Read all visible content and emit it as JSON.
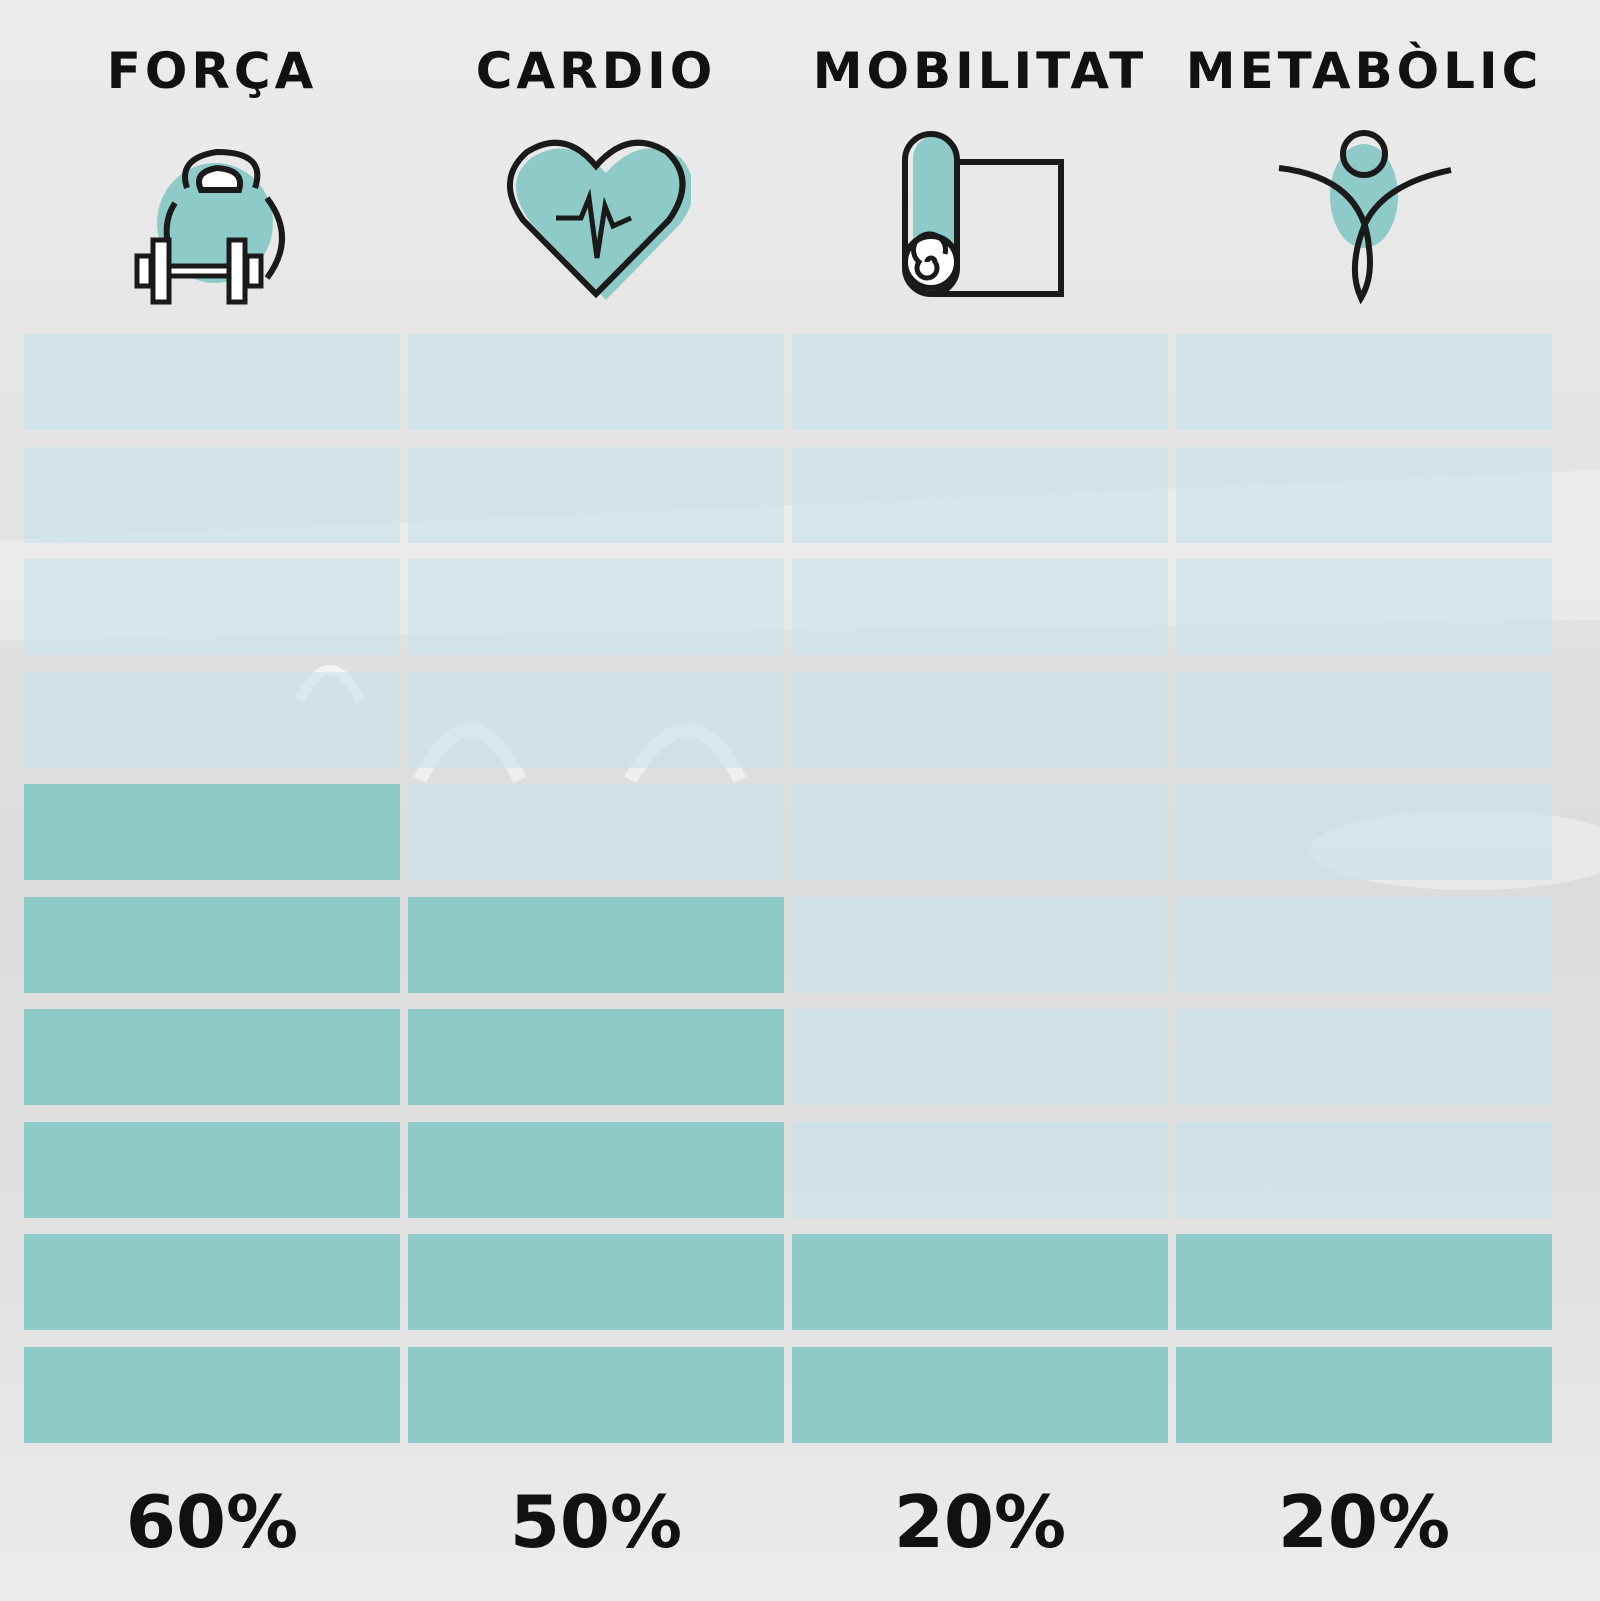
{
  "chart_data": {
    "type": "bar",
    "categories": [
      "FORÇA",
      "CARDIO",
      "MOBILITAT",
      "METABÒLIC"
    ],
    "values": [
      60,
      50,
      20,
      20
    ],
    "value_labels": [
      "60%",
      "50%",
      "20%",
      "20%"
    ],
    "unit": "%",
    "blocks_per_column": 10,
    "ylim": [
      0,
      100
    ],
    "title": "",
    "xlabel": "",
    "ylabel": "",
    "legend": "none",
    "grid": false
  },
  "icons": [
    "kettlebell-dumbbell-icon",
    "heart-pulse-icon",
    "yoga-mat-icon",
    "person-icon"
  ],
  "colors": {
    "filled": "#8ecbc8",
    "empty": "#c6e2ec",
    "accent": "#8ecbc8",
    "text": "#111111"
  }
}
